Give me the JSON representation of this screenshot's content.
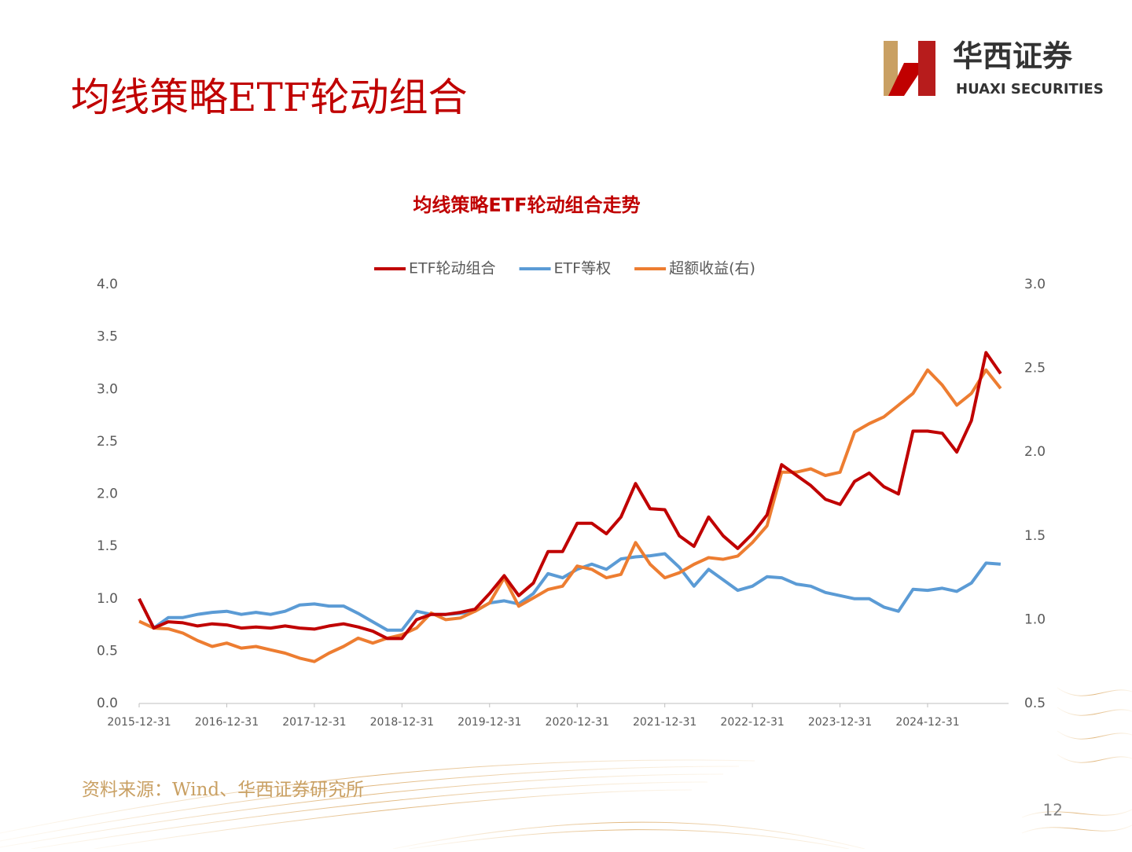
{
  "header": {
    "title": "均线策略ETF轮动组合",
    "logo_cn": "华西证券",
    "logo_en": "HUAXI SECURITIES"
  },
  "chart_data": {
    "type": "line",
    "title": "均线策略ETF轮动组合走势",
    "legend": "top",
    "categories": [
      "2015-12-31",
      null,
      null,
      null,
      null,
      null,
      "2016-12-31",
      null,
      null,
      null,
      null,
      null,
      "2017-12-31",
      null,
      null,
      null,
      null,
      null,
      "2018-12-31",
      null,
      null,
      null,
      null,
      null,
      "2019-12-31",
      null,
      null,
      null,
      null,
      null,
      "2020-12-31",
      null,
      null,
      null,
      null,
      null,
      "2021-12-31",
      null,
      null,
      null,
      null,
      null,
      "2022-12-31",
      null,
      null,
      null,
      null,
      null,
      "2023-12-31",
      null,
      null,
      null,
      null,
      null,
      "2024-12-31",
      null,
      null,
      null,
      null,
      null
    ],
    "series": [
      {
        "name": "ETF轮动组合",
        "color": "#c00000",
        "values": [
          1.0,
          0.72,
          0.78,
          0.77,
          0.74,
          0.76,
          0.75,
          0.72,
          0.73,
          0.72,
          0.74,
          0.72,
          0.71,
          0.74,
          0.76,
          0.73,
          0.69,
          0.62,
          0.62,
          0.8,
          0.85,
          0.85,
          0.87,
          0.9,
          1.05,
          1.22,
          1.03,
          1.15,
          1.45,
          1.45,
          1.72,
          1.72,
          1.62,
          1.78,
          2.1,
          1.86,
          1.85,
          1.6,
          1.5,
          1.78,
          1.6,
          1.48,
          1.62,
          1.8,
          2.28,
          2.18,
          2.08,
          1.95,
          1.9,
          2.12,
          2.2,
          2.07,
          2.0,
          2.6,
          2.6,
          2.58,
          2.4,
          2.7,
          3.35,
          3.15
        ]
      },
      {
        "name": "ETF等权",
        "color": "#5b9bd5",
        "values": [
          1.0,
          0.72,
          0.82,
          0.82,
          0.85,
          0.87,
          0.88,
          0.85,
          0.87,
          0.85,
          0.88,
          0.94,
          0.95,
          0.93,
          0.93,
          0.86,
          0.78,
          0.7,
          0.7,
          0.88,
          0.85,
          0.85,
          0.86,
          0.88,
          0.96,
          0.98,
          0.95,
          1.05,
          1.24,
          1.2,
          1.28,
          1.33,
          1.28,
          1.38,
          1.4,
          1.41,
          1.43,
          1.3,
          1.12,
          1.28,
          1.18,
          1.08,
          1.12,
          1.21,
          1.2,
          1.14,
          1.12,
          1.06,
          1.03,
          1.0,
          1.0,
          0.92,
          0.88,
          1.09,
          1.08,
          1.1,
          1.07,
          1.15,
          1.34,
          1.33
        ]
      },
      {
        "name": "超额收益(右)",
        "color": "#ed7d31",
        "axis": "y2",
        "values": [
          0.99,
          0.95,
          0.945,
          0.92,
          0.875,
          0.84,
          0.86,
          0.83,
          0.84,
          0.82,
          0.8,
          0.77,
          0.75,
          0.8,
          0.84,
          0.89,
          0.86,
          0.89,
          0.91,
          0.95,
          1.04,
          1.0,
          1.01,
          1.05,
          1.1,
          1.25,
          1.08,
          1.13,
          1.18,
          1.2,
          1.32,
          1.3,
          1.25,
          1.27,
          1.46,
          1.33,
          1.25,
          1.28,
          1.33,
          1.37,
          1.36,
          1.38,
          1.46,
          1.56,
          1.88,
          1.88,
          1.9,
          1.86,
          1.88,
          2.12,
          2.17,
          2.21,
          2.28,
          2.35,
          2.49,
          2.4,
          2.28,
          2.35,
          2.49,
          2.38
        ]
      }
    ],
    "ylim": [
      0,
      4
    ],
    "yticks": [
      {
        "value": 0,
        "label": "0.0"
      },
      0.5,
      {
        "value": 1,
        "label": "1.0"
      },
      1.5,
      {
        "value": 2,
        "label": "2.0"
      },
      2.5,
      {
        "value": 3,
        "label": "3.0"
      },
      3.5,
      {
        "value": 4,
        "label": "4.0"
      }
    ],
    "y2lim": [
      0.5,
      3
    ],
    "y2ticks": [
      0.5,
      {
        "value": 1,
        "label": "1.0"
      },
      1.5,
      {
        "value": 2,
        "label": "2.0"
      },
      2.5,
      {
        "value": 3,
        "label": "3.0"
      }
    ]
  },
  "footer": {
    "source": "资料来源：Wind、华西证券研究所",
    "page": "12"
  }
}
